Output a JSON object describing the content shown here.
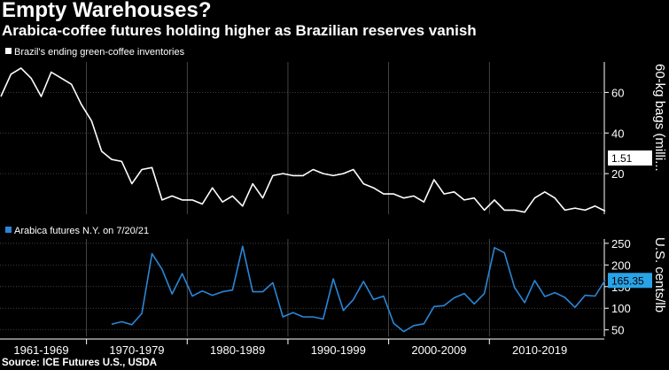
{
  "header": {
    "title": "Empty Warehouses?",
    "subtitle": "Arabica-coffee futures holding higher as Brazilian reserves vanish"
  },
  "source": "Source: ICE Futures U.S., USDA",
  "colors": {
    "inventory_line": "#ffffff",
    "futures_line": "#2a86d6",
    "callout_bg": "#2aa3e6",
    "grid": "#555555"
  },
  "x_axis": {
    "decade_labels": [
      {
        "label": "1961-1969",
        "start": 1961,
        "end": 1969
      },
      {
        "label": "1970-1979",
        "start": 1970,
        "end": 1979
      },
      {
        "label": "1980-1989",
        "start": 1980,
        "end": 1989
      },
      {
        "label": "1990-1999",
        "start": 1990,
        "end": 1999
      },
      {
        "label": "2000-2009",
        "start": 2000,
        "end": 2009
      },
      {
        "label": "2010-2019",
        "start": 2010,
        "end": 2019
      }
    ],
    "range": [
      1961,
      2021
    ]
  },
  "chart_data": [
    {
      "type": "line",
      "legend": "Brazil's ending green-coffee inventories",
      "ylabel": "60-kg bags (milli...",
      "ylim": [
        0,
        75
      ],
      "yticks": [
        20,
        40,
        60
      ],
      "last_value_label": "1.51",
      "series": [
        {
          "name": "Brazil's ending green-coffee inventories",
          "x": [
            1961,
            1962,
            1963,
            1964,
            1965,
            1966,
            1967,
            1968,
            1969,
            1970,
            1971,
            1972,
            1973,
            1974,
            1975,
            1976,
            1977,
            1978,
            1979,
            1980,
            1981,
            1982,
            1983,
            1984,
            1985,
            1986,
            1987,
            1988,
            1989,
            1990,
            1991,
            1992,
            1993,
            1994,
            1995,
            1996,
            1997,
            1998,
            1999,
            2000,
            2001,
            2002,
            2003,
            2004,
            2005,
            2006,
            2007,
            2008,
            2009,
            2010,
            2011,
            2012,
            2013,
            2014,
            2015,
            2016,
            2017,
            2018,
            2019,
            2020,
            2021
          ],
          "values": [
            58,
            69,
            72,
            67,
            58,
            70,
            67,
            64,
            54,
            46,
            31,
            27,
            26,
            15,
            22,
            23,
            7,
            9,
            7,
            7,
            5,
            13,
            6,
            9,
            4,
            15,
            8,
            19,
            20,
            19,
            19,
            22,
            20,
            19,
            20,
            22,
            15,
            13,
            10,
            10,
            8,
            9,
            6,
            17,
            10,
            11,
            7,
            8,
            2,
            7,
            2,
            2,
            1,
            8,
            11,
            8,
            2,
            3,
            2,
            4,
            1.51
          ]
        }
      ]
    },
    {
      "type": "line",
      "legend": "Arabica futures N.Y.  on 7/20/21",
      "ylabel": "U.S. cents/lb",
      "ylim": [
        35,
        260
      ],
      "yticks": [
        50,
        100,
        150,
        200,
        250
      ],
      "last_value_label": "165.35",
      "series": [
        {
          "name": "Arabica futures N.Y.",
          "x": [
            1972,
            1973,
            1974,
            1975,
            1976,
            1977,
            1978,
            1979,
            1980,
            1981,
            1982,
            1983,
            1984,
            1985,
            1986,
            1987,
            1988,
            1989,
            1990,
            1991,
            1992,
            1993,
            1994,
            1995,
            1996,
            1997,
            1998,
            1999,
            2000,
            2001,
            2002,
            2003,
            2004,
            2005,
            2006,
            2007,
            2008,
            2009,
            2010,
            2011,
            2012,
            2013,
            2014,
            2015,
            2016,
            2017,
            2018,
            2019,
            2020,
            2021
          ],
          "values": [
            63,
            69,
            62,
            88,
            226,
            190,
            133,
            180,
            128,
            140,
            130,
            138,
            142,
            243,
            138,
            138,
            159,
            80,
            90,
            80,
            80,
            75,
            168,
            95,
            120,
            162,
            120,
            128,
            65,
            46,
            60,
            64,
            104,
            106,
            124,
            134,
            110,
            134,
            240,
            228,
            148,
            113,
            164,
            127,
            136,
            125,
            102,
            130,
            128,
            165.35
          ]
        }
      ]
    }
  ]
}
